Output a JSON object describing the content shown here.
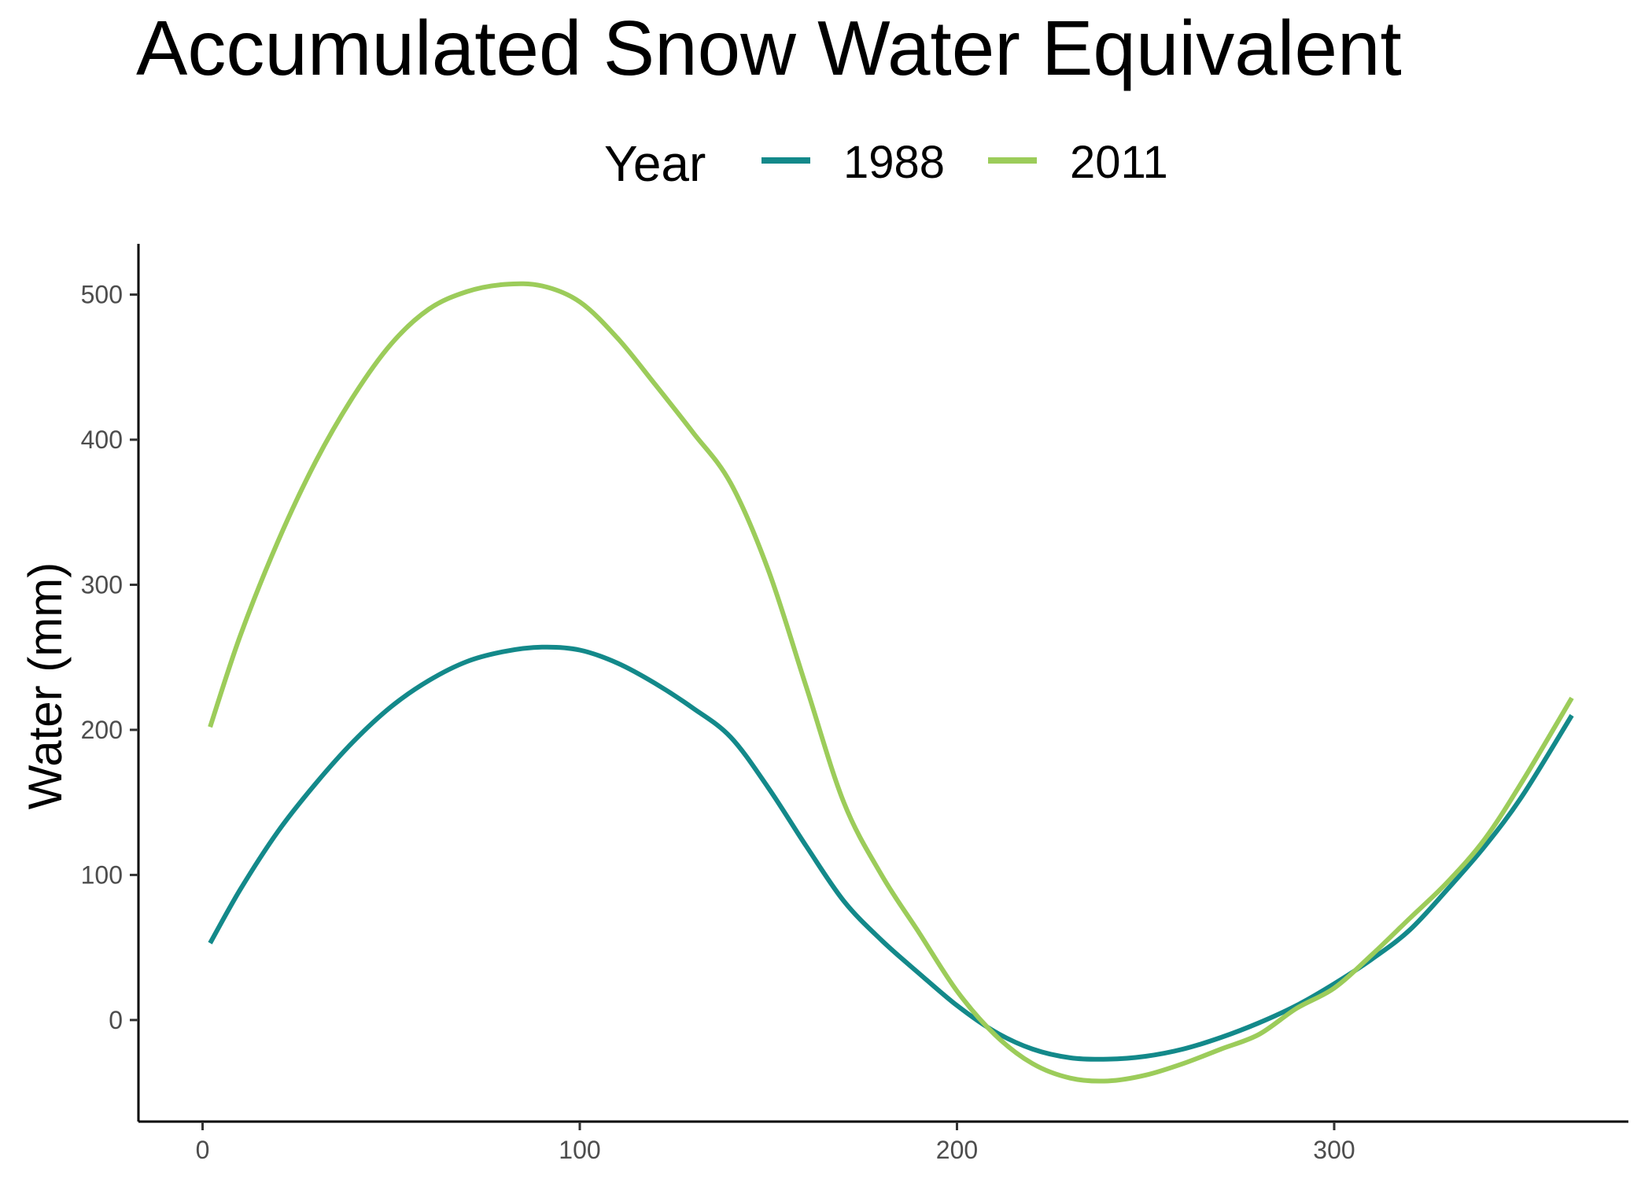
{
  "chart_data": {
    "type": "line",
    "title": "Accumulated Snow Water Equivalent",
    "xlabel": "",
    "ylabel": "Water (mm)",
    "xlim": [
      -17,
      378
    ],
    "ylim": [
      -70,
      535
    ],
    "xticks": [
      0,
      100,
      200,
      300
    ],
    "yticks": [
      0,
      100,
      200,
      300,
      400,
      500
    ],
    "grid": false,
    "legend": {
      "title": "Year",
      "position": "top"
    },
    "series": [
      {
        "name": "1988",
        "color": "#13898a",
        "x": [
          2,
          10,
          20,
          30,
          40,
          50,
          60,
          70,
          80,
          90,
          100,
          110,
          120,
          130,
          140,
          150,
          160,
          170,
          180,
          190,
          200,
          210,
          220,
          230,
          240,
          250,
          260,
          270,
          280,
          290,
          300,
          310,
          320,
          330,
          340,
          350,
          363
        ],
        "y": [
          53,
          90,
          130,
          163,
          192,
          216,
          234,
          247,
          254,
          257,
          255,
          246,
          232,
          215,
          195,
          160,
          120,
          82,
          55,
          32,
          10,
          -8,
          -20,
          -26,
          -27,
          -25,
          -20,
          -12,
          -2,
          10,
          25,
          42,
          62,
          90,
          120,
          155,
          210
        ]
      },
      {
        "name": "2011",
        "color": "#9ccc5a",
        "x": [
          2,
          10,
          20,
          30,
          40,
          50,
          60,
          70,
          80,
          90,
          100,
          110,
          120,
          130,
          140,
          150,
          160,
          170,
          180,
          190,
          200,
          210,
          220,
          230,
          240,
          250,
          260,
          270,
          280,
          290,
          300,
          310,
          320,
          330,
          340,
          350,
          363
        ],
        "y": [
          202,
          265,
          330,
          385,
          430,
          466,
          490,
          502,
          507,
          506,
          495,
          470,
          438,
          405,
          370,
          310,
          230,
          150,
          100,
          60,
          20,
          -10,
          -30,
          -40,
          -42,
          -38,
          -30,
          -20,
          -10,
          8,
          22,
          45,
          70,
          95,
          125,
          165,
          222
        ]
      }
    ]
  }
}
